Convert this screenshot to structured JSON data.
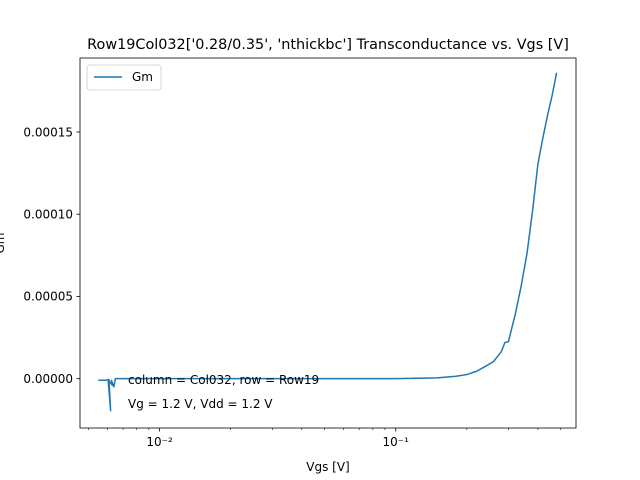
{
  "chart_data": {
    "type": "line",
    "title": "Row19Col032['0.28/0.35', 'nthickbc'] Transconductance vs. Vgs [V]",
    "xlabel": "Vgs [V]",
    "ylabel": "Gm",
    "xscale": "log",
    "xlim": [
      0.0046,
      0.58
    ],
    "ylim": [
      -3e-05,
      0.000195
    ],
    "xticks": [
      {
        "value": 0.01,
        "label": "10⁻²"
      },
      {
        "value": 0.1,
        "label": "10⁻¹"
      }
    ],
    "yticks": [
      {
        "value": 0.0,
        "label": "0.00000"
      },
      {
        "value": 5e-05,
        "label": "0.00005"
      },
      {
        "value": 0.0001,
        "label": "0.00010"
      },
      {
        "value": 0.00015,
        "label": "0.00015"
      }
    ],
    "grid": false,
    "legend_position": "upper-left",
    "series": [
      {
        "name": "Gm",
        "color": "#1f77b4",
        "x": [
          0.0055,
          0.0059,
          0.0061,
          0.0062,
          0.00605,
          0.0063,
          0.00625,
          0.0064,
          0.0065,
          0.0075,
          0.01,
          0.02,
          0.05,
          0.1,
          0.15,
          0.18,
          0.2,
          0.22,
          0.24,
          0.26,
          0.27,
          0.28,
          0.29,
          0.3,
          0.32,
          0.34,
          0.36,
          0.38,
          0.4,
          0.42,
          0.44,
          0.46,
          0.48
        ],
        "y": [
          -1e-06,
          -1e-06,
          -5e-07,
          -1.95e-05,
          -5e-07,
          -4e-06,
          -1e-06,
          -5e-06,
          0.0,
          0.0,
          0.0,
          0.0,
          0.0,
          0.0,
          5e-07,
          1.5e-06,
          2.5e-06,
          4.5e-06,
          7.5e-06,
          1.05e-05,
          1.35e-05,
          1.65e-05,
          2.2e-05,
          2.25e-05,
          3.85e-05,
          5.65e-05,
          7.65e-05,
          0.0001025,
          0.0001305,
          0.0001465,
          0.0001605,
          0.0001725,
          0.000186
        ]
      }
    ],
    "annotations": [
      "column = Col032, row = Row19",
      "Vg = 1.2 V, Vdd = 1.2 V"
    ]
  }
}
